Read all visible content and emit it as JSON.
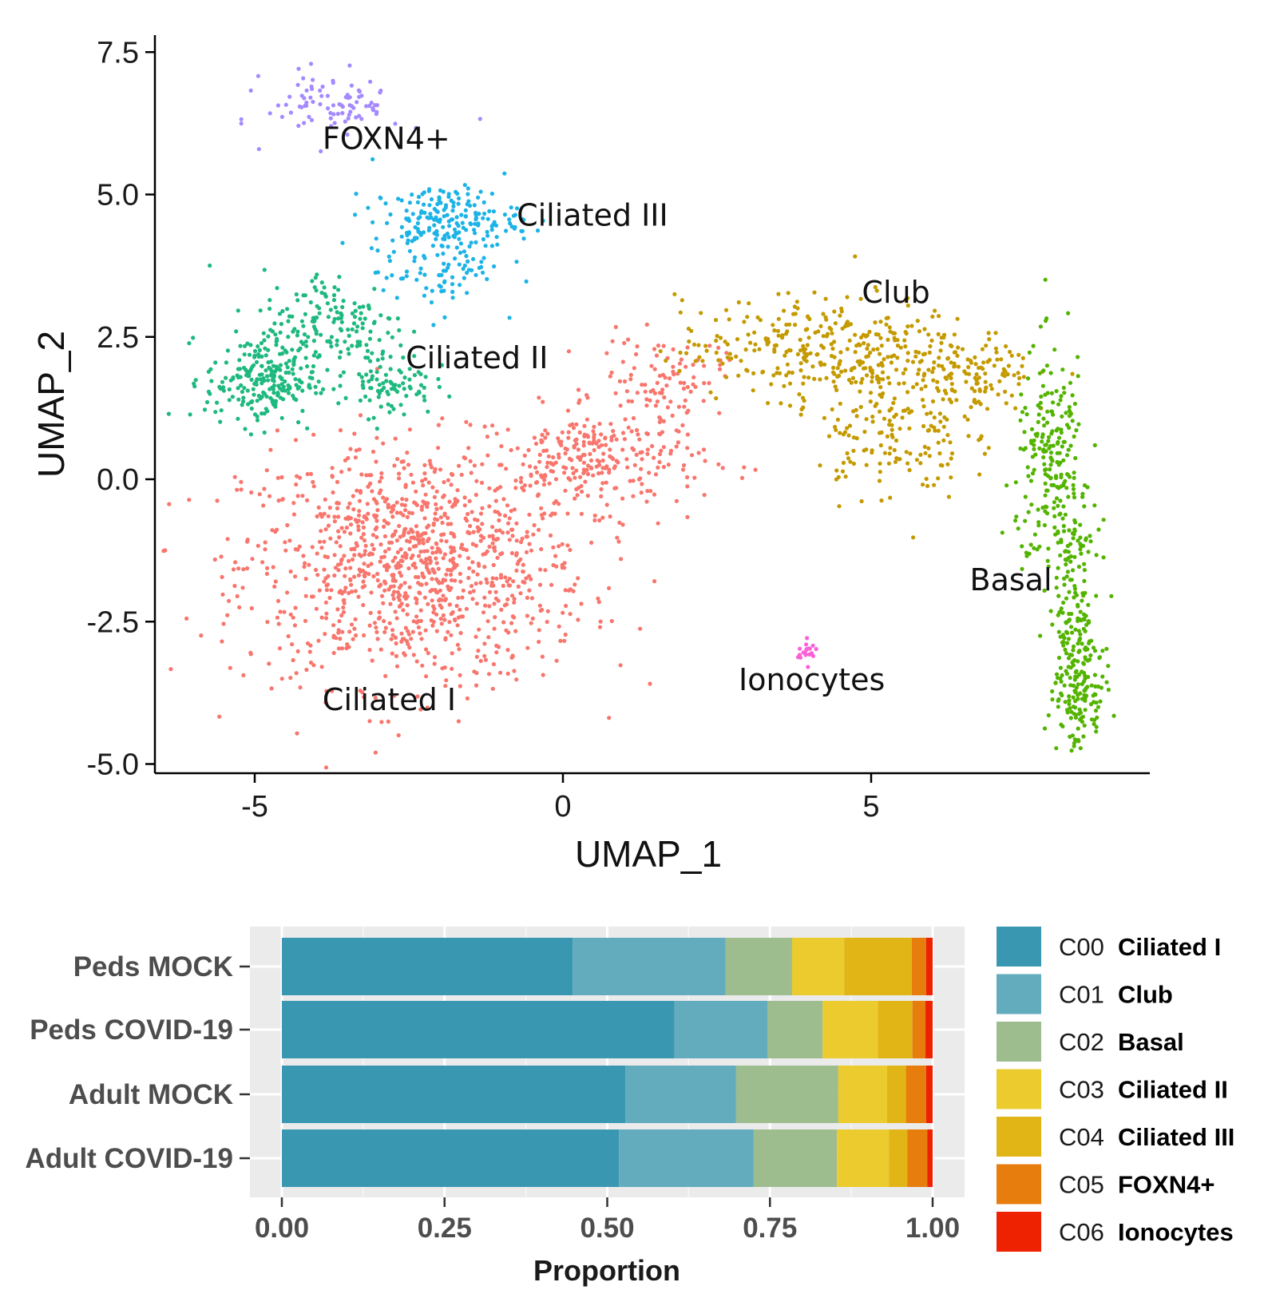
{
  "chart_data": [
    {
      "type": "scatter",
      "xlabel": "UMAP_1",
      "ylabel": "UMAP_2",
      "xlim": [
        -6.3,
        9.8
      ],
      "ylim": [
        -5.15,
        7.75
      ],
      "xticks": [
        -5,
        0,
        5
      ],
      "xtick_labels": [
        "-5",
        "0",
        "5"
      ],
      "yticks": [
        7.5,
        5.0,
        2.5,
        0.0,
        -2.5,
        -5.0
      ],
      "ytick_labels": [
        "7.5",
        "5.0",
        "2.5",
        "0.0",
        "-2.5",
        "-5.0"
      ],
      "grid": false,
      "cluster_labels": [
        {
          "text": "FOXN4+",
          "x": -3.9,
          "y": 5.8
        },
        {
          "text": "Ciliated III",
          "x": -0.75,
          "y": 4.45
        },
        {
          "text": "Club",
          "x": 4.85,
          "y": 3.1
        },
        {
          "text": "Ciliated II",
          "x": -2.55,
          "y": 1.95
        },
        {
          "text": "Basal",
          "x": 6.6,
          "y": -1.95
        },
        {
          "text": "Ionocytes",
          "x": 2.85,
          "y": -3.7
        },
        {
          "text": "Ciliated I",
          "x": -3.9,
          "y": -4.05
        }
      ],
      "clusters": [
        {
          "name": "Ciliated I",
          "color": "#F8766D",
          "center": [
            -2.4,
            -1.5
          ],
          "spread": [
            1.4,
            1.05
          ],
          "count": 1100
        },
        {
          "name": "Ciliated I",
          "color": "#F8766D",
          "center": [
            0.6,
            0.35
          ],
          "spread": [
            0.85,
            0.45
          ],
          "count": 260
        },
        {
          "name": "Ciliated I",
          "color": "#F8766D",
          "center": [
            1.6,
            1.8
          ],
          "spread": [
            0.5,
            0.35
          ],
          "count": 90
        },
        {
          "name": "Ciliated II",
          "color": "#1EB97F",
          "center": [
            -4.9,
            1.75
          ],
          "spread": [
            0.45,
            0.4
          ],
          "count": 230
        },
        {
          "name": "Ciliated II",
          "color": "#1EB97F",
          "center": [
            -3.7,
            2.7
          ],
          "spread": [
            0.6,
            0.5
          ],
          "count": 160
        },
        {
          "name": "Ciliated II",
          "color": "#1EB97F",
          "center": [
            -2.8,
            1.7
          ],
          "spread": [
            0.35,
            0.3
          ],
          "count": 80
        },
        {
          "name": "Ciliated III",
          "color": "#1CB3E6",
          "center": [
            -1.9,
            4.55
          ],
          "spread": [
            0.6,
            0.3
          ],
          "count": 200
        },
        {
          "name": "Ciliated III",
          "color": "#1CB3E6",
          "center": [
            -2.0,
            3.6
          ],
          "spread": [
            0.5,
            0.3
          ],
          "count": 70
        },
        {
          "name": "Club",
          "color": "#C49A00",
          "center": [
            4.3,
            2.3
          ],
          "spread": [
            1.2,
            0.45
          ],
          "count": 330
        },
        {
          "name": "Club",
          "color": "#C49A00",
          "center": [
            5.3,
            0.8
          ],
          "spread": [
            0.6,
            0.6
          ],
          "count": 150
        },
        {
          "name": "Club",
          "color": "#C49A00",
          "center": [
            6.6,
            1.8
          ],
          "spread": [
            0.5,
            0.4
          ],
          "count": 120
        },
        {
          "name": "Basal",
          "color": "#53B400",
          "center": [
            7.95,
            0.2
          ],
          "spread": [
            0.3,
            1.0
          ],
          "count": 230
        },
        {
          "name": "Basal",
          "color": "#53B400",
          "center": [
            8.3,
            -2.6
          ],
          "spread": [
            0.2,
            0.9
          ],
          "count": 180
        },
        {
          "name": "Basal",
          "color": "#53B400",
          "center": [
            8.4,
            -3.9
          ],
          "spread": [
            0.2,
            0.4
          ],
          "count": 90
        },
        {
          "name": "FOXN4+",
          "color": "#A58AFF",
          "center": [
            -3.7,
            6.6
          ],
          "spread": [
            0.55,
            0.3
          ],
          "count": 90
        },
        {
          "name": "Ionocytes",
          "color": "#FB61D7",
          "center": [
            3.95,
            -3.05
          ],
          "spread": [
            0.08,
            0.1
          ],
          "count": 20
        }
      ]
    },
    {
      "type": "bar",
      "orientation": "horizontal",
      "stacked": true,
      "xlabel": "Proportion",
      "xlim": [
        0,
        1
      ],
      "xticks": [
        0.0,
        0.25,
        0.5,
        0.75,
        1.0
      ],
      "xtick_labels": [
        "0.00",
        "0.25",
        "0.50",
        "0.75",
        "1.00"
      ],
      "categories": [
        "Peds MOCK",
        "Peds COVID-19",
        "Adult MOCK",
        "Adult COVID-19"
      ],
      "series": [
        {
          "code": "C00",
          "name": "Ciliated I",
          "color": "#3A97B1",
          "values": [
            0.447,
            0.603,
            0.528,
            0.518
          ]
        },
        {
          "code": "C01",
          "name": "Club",
          "color": "#62ACBE",
          "values": [
            0.235,
            0.143,
            0.17,
            0.207
          ]
        },
        {
          "code": "C02",
          "name": "Basal",
          "color": "#9DBD8F",
          "values": [
            0.102,
            0.085,
            0.157,
            0.128
          ]
        },
        {
          "code": "C03",
          "name": "Ciliated II",
          "color": "#EBCB2E",
          "values": [
            0.08,
            0.085,
            0.075,
            0.08
          ]
        },
        {
          "code": "C04",
          "name": "Ciliated III",
          "color": "#E2B516",
          "values": [
            0.104,
            0.053,
            0.029,
            0.028
          ]
        },
        {
          "code": "C05",
          "name": "FOXN4+",
          "color": "#E77D0C",
          "values": [
            0.022,
            0.02,
            0.031,
            0.031
          ]
        },
        {
          "code": "C06",
          "name": "Ionocytes",
          "color": "#EE2100",
          "values": [
            0.01,
            0.011,
            0.01,
            0.008
          ]
        }
      ],
      "legend_position": "right",
      "grid": true
    }
  ]
}
